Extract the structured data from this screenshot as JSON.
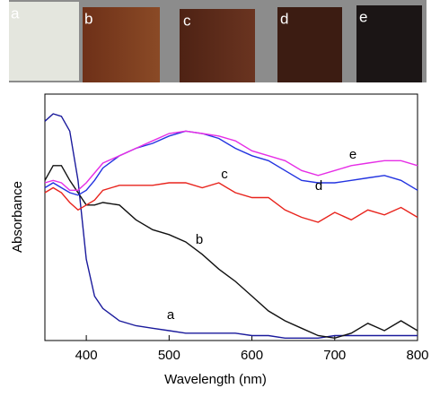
{
  "chart_data": {
    "type": "line",
    "xlabel": "Wavelength (nm)",
    "ylabel": "Absorbance",
    "xlim": [
      350,
      800
    ],
    "xticks": [
      400,
      500,
      600,
      700,
      800
    ],
    "ylim": [
      0,
      1
    ],
    "x": [
      350,
      360,
      370,
      380,
      390,
      400,
      410,
      420,
      440,
      460,
      480,
      500,
      520,
      540,
      560,
      580,
      600,
      620,
      640,
      660,
      680,
      700,
      720,
      740,
      760,
      780,
      800
    ],
    "series": [
      {
        "name": "a",
        "color": "#1a1a9c",
        "values": [
          0.89,
          0.92,
          0.91,
          0.85,
          0.65,
          0.33,
          0.18,
          0.13,
          0.08,
          0.06,
          0.05,
          0.04,
          0.03,
          0.03,
          0.03,
          0.03,
          0.02,
          0.02,
          0.01,
          0.01,
          0.01,
          0.02,
          0.02,
          0.02,
          0.02,
          0.02,
          0.02
        ]
      },
      {
        "name": "b",
        "color": "#111111",
        "values": [
          0.65,
          0.71,
          0.71,
          0.65,
          0.6,
          0.55,
          0.55,
          0.56,
          0.55,
          0.49,
          0.45,
          0.43,
          0.4,
          0.35,
          0.29,
          0.24,
          0.18,
          0.12,
          0.08,
          0.05,
          0.02,
          0.01,
          0.03,
          0.07,
          0.04,
          0.08,
          0.04
        ]
      },
      {
        "name": "c",
        "color": "#e8231c",
        "values": [
          0.6,
          0.62,
          0.6,
          0.56,
          0.53,
          0.55,
          0.57,
          0.61,
          0.63,
          0.63,
          0.63,
          0.64,
          0.64,
          0.62,
          0.64,
          0.6,
          0.58,
          0.58,
          0.53,
          0.5,
          0.48,
          0.52,
          0.49,
          0.53,
          0.51,
          0.54,
          0.5
        ]
      },
      {
        "name": "d",
        "color": "#2233e0",
        "values": [
          0.62,
          0.64,
          0.62,
          0.6,
          0.59,
          0.61,
          0.65,
          0.7,
          0.75,
          0.78,
          0.8,
          0.83,
          0.85,
          0.84,
          0.82,
          0.78,
          0.75,
          0.73,
          0.69,
          0.65,
          0.64,
          0.64,
          0.65,
          0.66,
          0.67,
          0.65,
          0.61
        ]
      },
      {
        "name": "e",
        "color": "#e62ee6",
        "values": [
          0.64,
          0.65,
          0.64,
          0.61,
          0.61,
          0.64,
          0.68,
          0.72,
          0.75,
          0.78,
          0.81,
          0.84,
          0.85,
          0.84,
          0.83,
          0.81,
          0.77,
          0.75,
          0.73,
          0.69,
          0.67,
          0.69,
          0.71,
          0.72,
          0.73,
          0.73,
          0.71
        ]
      }
    ]
  }
}
